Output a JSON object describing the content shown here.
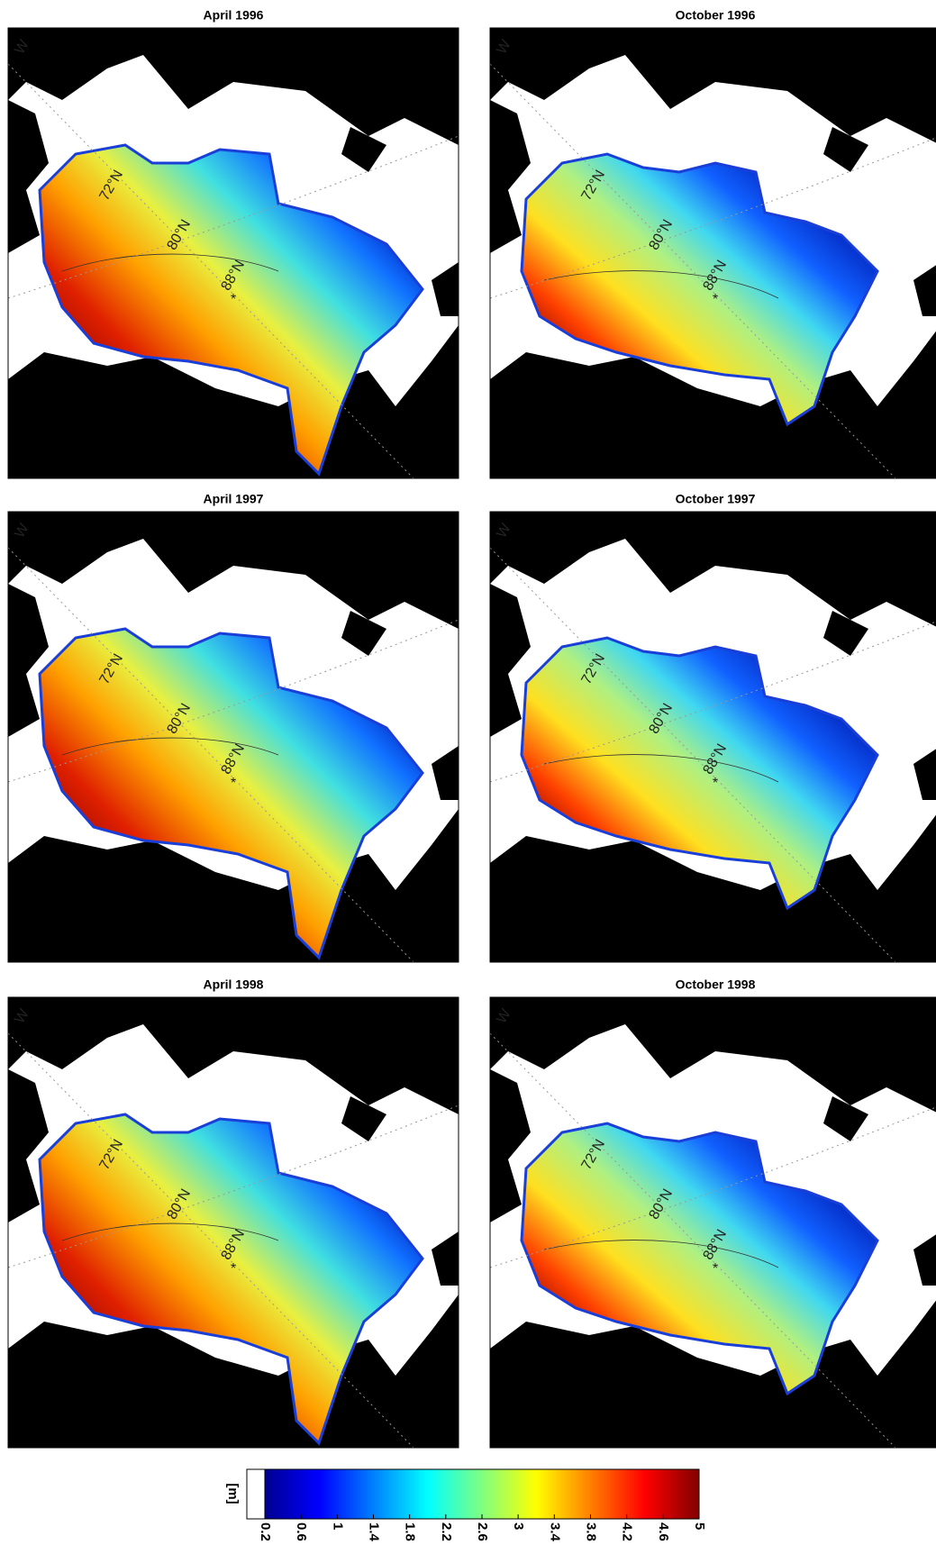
{
  "figure": {
    "panels": [
      {
        "title": "April 1996",
        "corner_label": "W",
        "latitude_labels": [
          "72°N",
          "80°N",
          "88°N"
        ]
      },
      {
        "title": "October 1996",
        "corner_label": "W",
        "latitude_labels": [
          "72°N",
          "80°N",
          "88°N"
        ]
      },
      {
        "title": "April 1997",
        "corner_label": "W",
        "latitude_labels": [
          "72°N",
          "80°N",
          "88°N"
        ]
      },
      {
        "title": "October 1997",
        "corner_label": "W",
        "latitude_labels": [
          "72°N",
          "80°N",
          "88°N"
        ]
      },
      {
        "title": "April 1998",
        "corner_label": "W",
        "latitude_labels": [
          "72°N",
          "80°N",
          "88°N"
        ]
      },
      {
        "title": "October 1998",
        "corner_label": "W",
        "latitude_labels": [
          "72°N",
          "80°N",
          "88°N"
        ]
      }
    ],
    "colorbar": {
      "unit": "[m]",
      "clim": [
        0.2,
        5
      ],
      "ticks": [
        0.2,
        0.6,
        1,
        1.4,
        1.8,
        2.2,
        2.6,
        3,
        3.4,
        3.8,
        4.2,
        4.6,
        5
      ]
    }
  }
}
